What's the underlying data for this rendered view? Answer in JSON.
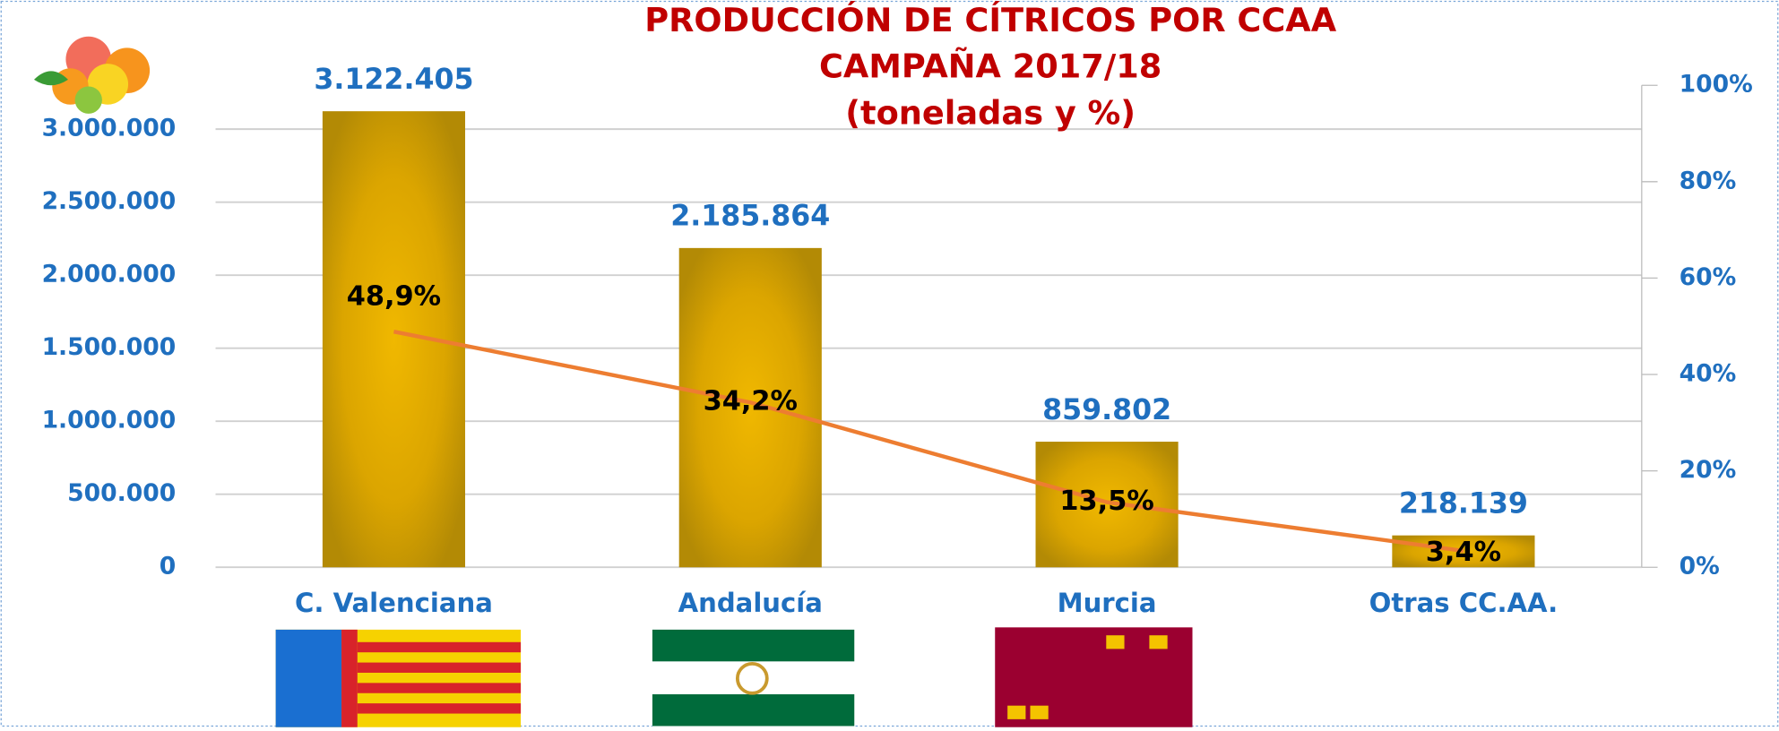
{
  "chart_data": {
    "type": "bar",
    "title": "PRODUCCIÓN DE CÍTRICOS POR CCAA",
    "subtitle": "CAMPAÑA 2017/18",
    "unit_note": "(toneladas y %)",
    "categories": [
      "C. Valenciana",
      "Andalucía",
      "Murcia",
      "Otras CC.AA."
    ],
    "series": [
      {
        "type": "bar",
        "color": "#d9a400",
        "values": [
          3122405,
          2185864,
          859802,
          218139
        ],
        "value_labels": [
          "3.122.405",
          "2.185.864",
          "859.802",
          "218.139"
        ]
      },
      {
        "type": "line",
        "axis": "y2",
        "color": "#ed7d31",
        "values": [
          48.9,
          34.2,
          13.5,
          3.4
        ],
        "value_labels": [
          "48,9%",
          "34,2%",
          "13,5%",
          "3,4%"
        ]
      }
    ],
    "ylim": [
      0,
      3300000
    ],
    "yticks": [
      {
        "value": 0,
        "label": "0"
      },
      {
        "value": 500000,
        "label": "500.000"
      },
      {
        "value": 1000000,
        "label": "1.000.000"
      },
      {
        "value": 1500000,
        "label": "1.500.000"
      },
      {
        "value": 2000000,
        "label": "2.000.000"
      },
      {
        "value": 2500000,
        "label": "2.500.000"
      },
      {
        "value": 3000000,
        "label": "3.000.000"
      }
    ],
    "y2lim": [
      0,
      100
    ],
    "y2ticks": [
      {
        "value": 0,
        "label": "0%"
      },
      {
        "value": 20,
        "label": "20%"
      },
      {
        "value": 40,
        "label": "40%"
      },
      {
        "value": 60,
        "label": "60%"
      },
      {
        "value": 80,
        "label": "80%"
      },
      {
        "value": 100,
        "label": "100%"
      }
    ],
    "grid": true
  }
}
